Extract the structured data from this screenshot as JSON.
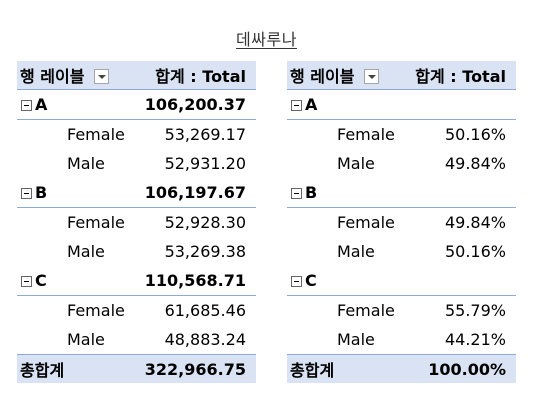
{
  "title": "데싸루나",
  "left": {
    "header": {
      "row_label": "행 레이블",
      "value_label": "합계 : Total"
    },
    "groups": [
      {
        "name": "A",
        "total": "106,200.37",
        "rows": [
          {
            "label": "Female",
            "value": "53,269.17"
          },
          {
            "label": "Male",
            "value": "52,931.20"
          }
        ]
      },
      {
        "name": "B",
        "total": "106,197.67",
        "rows": [
          {
            "label": "Female",
            "value": "52,928.30"
          },
          {
            "label": "Male",
            "value": "53,269.38"
          }
        ]
      },
      {
        "name": "C",
        "total": "110,568.71",
        "rows": [
          {
            "label": "Female",
            "value": "61,685.46"
          },
          {
            "label": "Male",
            "value": "48,883.24"
          }
        ]
      }
    ],
    "grand_total": {
      "label": "총합계",
      "value": "322,966.75"
    }
  },
  "right": {
    "header": {
      "row_label": "행 레이블",
      "value_label": "합계 : Total"
    },
    "groups": [
      {
        "name": "A",
        "total": "",
        "rows": [
          {
            "label": "Female",
            "value": "50.16%"
          },
          {
            "label": "Male",
            "value": "49.84%"
          }
        ]
      },
      {
        "name": "B",
        "total": "",
        "rows": [
          {
            "label": "Female",
            "value": "49.84%"
          },
          {
            "label": "Male",
            "value": "50.16%"
          }
        ]
      },
      {
        "name": "C",
        "total": "",
        "rows": [
          {
            "label": "Female",
            "value": "55.79%"
          },
          {
            "label": "Male",
            "value": "44.21%"
          }
        ]
      }
    ],
    "grand_total": {
      "label": "총합계",
      "value": "100.00%"
    }
  }
}
